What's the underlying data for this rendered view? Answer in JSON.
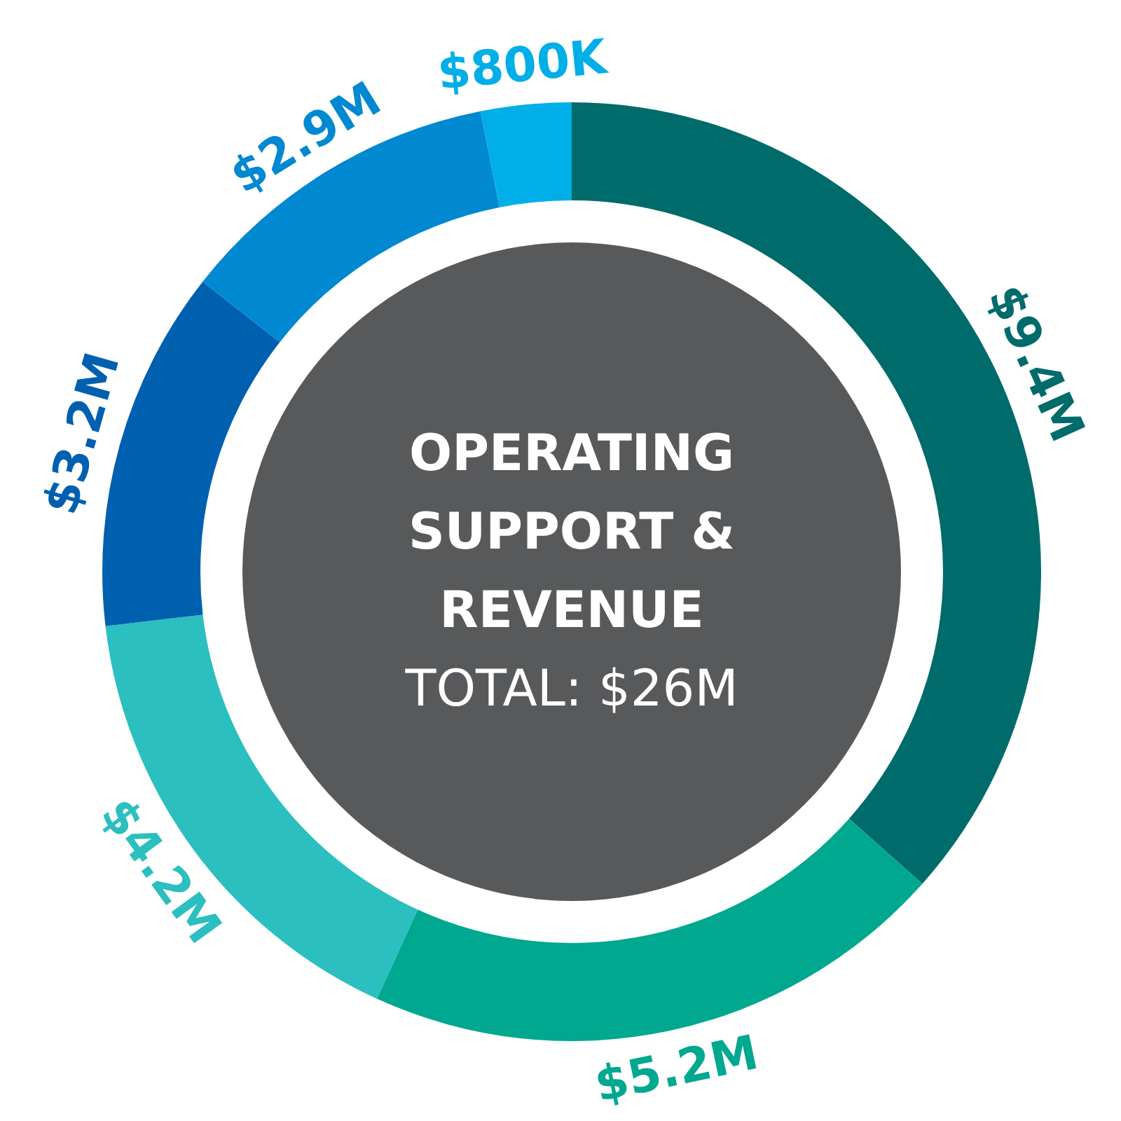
{
  "chart_data": {
    "type": "donut",
    "title": "OPERATING SUPPORT & REVENUE",
    "subtitle": "TOTAL: $26M",
    "categories": [
      null,
      null,
      null,
      null,
      null,
      null
    ],
    "values": [
      9400000,
      5200000,
      4200000,
      3200000,
      2900000,
      800000
    ],
    "value_labels": [
      "$9.4M",
      "$5.2M",
      "$4.2M",
      "$3.2M",
      "$2.9M",
      "$800K"
    ],
    "colors": [
      "#006b6b",
      "#00a88f",
      "#2bbfbf",
      "#0060b0",
      "#0088d0",
      "#00aee8"
    ]
  }
}
